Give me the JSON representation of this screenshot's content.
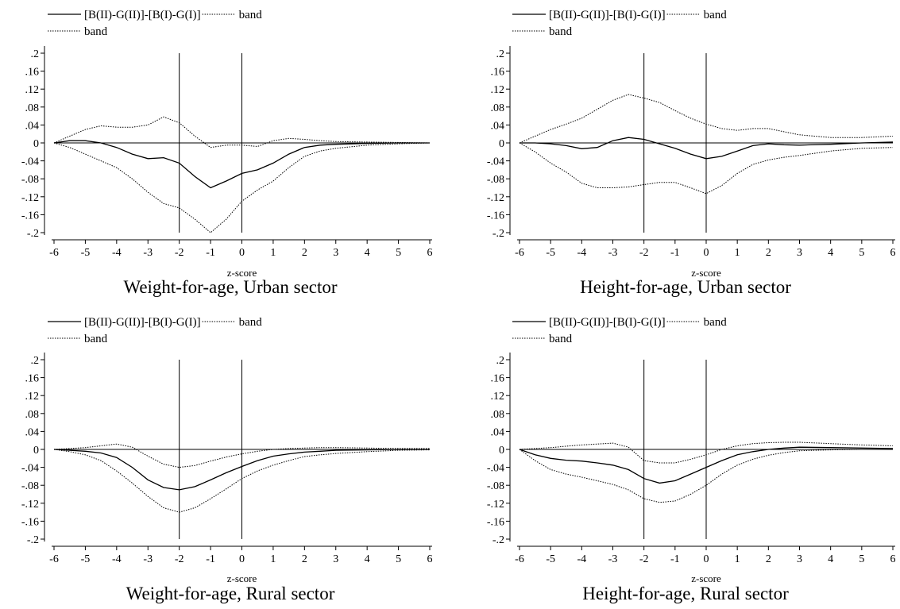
{
  "chart_data": [
    {
      "type": "line",
      "title": "Weight-for-age, Urban sector",
      "xlabel": "z-score",
      "ylabel": "",
      "xlim": [
        -6,
        6
      ],
      "ylim": [
        -0.2,
        0.2
      ],
      "x_ticks": [
        -6,
        -5,
        -4,
        -3,
        -2,
        -1,
        0,
        1,
        2,
        3,
        4,
        5,
        6
      ],
      "y_ticks": [
        0.2,
        0.16,
        0.12,
        0.08,
        0.04,
        0,
        -0.04,
        -0.08,
        -0.12,
        -0.16,
        -0.2
      ],
      "x_tick_labels": [
        "-6",
        "-5",
        "-4",
        "-3",
        "-2",
        "-1",
        "0",
        "1",
        "2",
        "3",
        "4",
        "5",
        "6"
      ],
      "y_tick_labels": [
        ".2",
        ".16",
        ".12",
        ".08",
        ".04",
        "0",
        "-.04",
        "-.08",
        "-.12",
        "-.16",
        "-.2"
      ],
      "vlines": [
        -2,
        0
      ],
      "hline": 0,
      "legend": {
        "placement": "top",
        "entries": [
          "[B(II)-G(II)]-[B(I)-G(I)]",
          "band",
          "band"
        ]
      },
      "series": [
        {
          "name": "[B(II)-G(II)]-[B(I)-G(I)]",
          "style": "solid",
          "x": [
            -6,
            -5.5,
            -5,
            -4.5,
            -4,
            -3.5,
            -3,
            -2.5,
            -2,
            -1.5,
            -1,
            -0.5,
            0,
            0.5,
            1,
            1.5,
            2,
            2.5,
            3,
            4,
            5,
            6
          ],
          "y": [
            0,
            0.005,
            0.005,
            0,
            -0.01,
            -0.025,
            -0.035,
            -0.033,
            -0.045,
            -0.075,
            -0.1,
            -0.085,
            -0.068,
            -0.06,
            -0.045,
            -0.025,
            -0.01,
            -0.005,
            -0.003,
            -0.001,
            0,
            0
          ]
        },
        {
          "name": "band",
          "style": "dotted",
          "x": [
            -6,
            -5.5,
            -5,
            -4.5,
            -4,
            -3.5,
            -3,
            -2.5,
            -2,
            -1.5,
            -1,
            -0.5,
            0,
            0.5,
            1,
            1.5,
            2,
            2.5,
            3,
            4,
            5,
            6
          ],
          "y": [
            0,
            0.015,
            0.03,
            0.038,
            0.035,
            0.035,
            0.04,
            0.058,
            0.045,
            0.015,
            -0.01,
            -0.005,
            -0.005,
            -0.008,
            0.005,
            0.01,
            0.008,
            0.005,
            0.003,
            0.002,
            0.001,
            0
          ]
        },
        {
          "name": "band",
          "style": "dotted",
          "x": [
            -6,
            -5.5,
            -5,
            -4.5,
            -4,
            -3.5,
            -3,
            -2.5,
            -2,
            -1.5,
            -1,
            -0.5,
            0,
            0.5,
            1,
            1.5,
            2,
            2.5,
            3,
            4,
            5,
            6
          ],
          "y": [
            0,
            -0.01,
            -0.025,
            -0.04,
            -0.055,
            -0.08,
            -0.11,
            -0.135,
            -0.145,
            -0.17,
            -0.2,
            -0.17,
            -0.13,
            -0.105,
            -0.085,
            -0.055,
            -0.03,
            -0.018,
            -0.012,
            -0.005,
            -0.002,
            0
          ]
        }
      ]
    },
    {
      "type": "line",
      "title": "Height-for-age, Urban sector",
      "xlabel": "z-score",
      "ylabel": "",
      "xlim": [
        -6,
        6
      ],
      "ylim": [
        -0.2,
        0.2
      ],
      "x_ticks": [
        -6,
        -5,
        -4,
        -3,
        -2,
        -1,
        0,
        1,
        2,
        3,
        4,
        5,
        6
      ],
      "y_ticks": [
        0.2,
        0.16,
        0.12,
        0.08,
        0.04,
        0,
        -0.04,
        -0.08,
        -0.12,
        -0.16,
        -0.2
      ],
      "x_tick_labels": [
        "-6",
        "-5",
        "-4",
        "-3",
        "-2",
        "-1",
        "0",
        "1",
        "2",
        "3",
        "4",
        "5",
        "6"
      ],
      "y_tick_labels": [
        ".2",
        ".16",
        ".12",
        ".08",
        ".04",
        "0",
        "-.04",
        "-.08",
        "-.12",
        "-.16",
        "-.2"
      ],
      "vlines": [
        -2,
        0
      ],
      "hline": 0,
      "legend": {
        "placement": "top",
        "entries": [
          "[B(II)-G(II)]-[B(I)-G(I)]",
          "band",
          "band"
        ]
      },
      "series": [
        {
          "name": "[B(II)-G(II)]-[B(I)-G(I)]",
          "style": "solid",
          "x": [
            -6,
            -5.5,
            -5,
            -4.5,
            -4,
            -3.5,
            -3,
            -2.5,
            -2,
            -1.5,
            -1,
            -0.5,
            0,
            0.5,
            1,
            1.5,
            2,
            2.5,
            3,
            4,
            5,
            6
          ],
          "y": [
            0,
            0,
            -0.002,
            -0.006,
            -0.013,
            -0.01,
            0.005,
            0.012,
            0.008,
            -0.002,
            -0.012,
            -0.025,
            -0.035,
            -0.03,
            -0.018,
            -0.006,
            -0.002,
            -0.004,
            -0.005,
            -0.003,
            0,
            0.002
          ]
        },
        {
          "name": "band",
          "style": "dotted",
          "x": [
            -6,
            -5.5,
            -5,
            -4.5,
            -4,
            -3.5,
            -3,
            -2.5,
            -2,
            -1.5,
            -1,
            -0.5,
            0,
            0.5,
            1,
            1.5,
            2,
            2.5,
            3,
            4,
            5,
            6
          ],
          "y": [
            0,
            0.015,
            0.03,
            0.042,
            0.055,
            0.075,
            0.095,
            0.108,
            0.1,
            0.09,
            0.072,
            0.055,
            0.042,
            0.032,
            0.028,
            0.032,
            0.032,
            0.025,
            0.018,
            0.012,
            0.012,
            0.015
          ]
        },
        {
          "name": "band",
          "style": "dotted",
          "x": [
            -6,
            -5.5,
            -5,
            -4.5,
            -4,
            -3.5,
            -3,
            -2.5,
            -2,
            -1.5,
            -1,
            -0.5,
            0,
            0.5,
            1,
            1.5,
            2,
            2.5,
            3,
            4,
            5,
            6
          ],
          "y": [
            0,
            -0.02,
            -0.045,
            -0.065,
            -0.09,
            -0.1,
            -0.1,
            -0.098,
            -0.093,
            -0.088,
            -0.088,
            -0.1,
            -0.113,
            -0.095,
            -0.068,
            -0.048,
            -0.038,
            -0.032,
            -0.028,
            -0.018,
            -0.012,
            -0.01
          ]
        }
      ]
    },
    {
      "type": "line",
      "title": "Weight-for-age, Rural sector",
      "xlabel": "z-score",
      "ylabel": "",
      "xlim": [
        -6,
        6
      ],
      "ylim": [
        -0.2,
        0.2
      ],
      "x_ticks": [
        -6,
        -5,
        -4,
        -3,
        -2,
        -1,
        0,
        1,
        2,
        3,
        4,
        5,
        6
      ],
      "y_ticks": [
        0.2,
        0.16,
        0.12,
        0.08,
        0.04,
        0,
        -0.04,
        -0.08,
        -0.12,
        -0.16,
        -0.2
      ],
      "x_tick_labels": [
        "-6",
        "-5",
        "-4",
        "-3",
        "-2",
        "-1",
        "0",
        "1",
        "2",
        "3",
        "4",
        "5",
        "6"
      ],
      "y_tick_labels": [
        ".2",
        ".16",
        ".12",
        ".08",
        ".04",
        "0",
        "-.04",
        "-.08",
        "-.12",
        "-.16",
        "-.2"
      ],
      "vlines": [
        -2,
        0
      ],
      "hline": 0,
      "legend": {
        "placement": "top",
        "entries": [
          "[B(II)-G(II)]-[B(I)-G(I)]",
          "band",
          "band"
        ]
      },
      "series": [
        {
          "name": "[B(II)-G(II)]-[B(I)-G(I)]",
          "style": "solid",
          "x": [
            -6,
            -5.5,
            -5,
            -4.5,
            -4,
            -3.5,
            -3,
            -2.5,
            -2,
            -1.5,
            -1,
            -0.5,
            0,
            0.5,
            1,
            1.5,
            2,
            2.5,
            3,
            4,
            5,
            6
          ],
          "y": [
            0,
            -0.002,
            -0.004,
            -0.008,
            -0.018,
            -0.04,
            -0.068,
            -0.085,
            -0.09,
            -0.083,
            -0.068,
            -0.052,
            -0.038,
            -0.025,
            -0.015,
            -0.01,
            -0.006,
            -0.004,
            -0.002,
            -0.001,
            0,
            0
          ]
        },
        {
          "name": "band",
          "style": "dotted",
          "x": [
            -6,
            -5.5,
            -5,
            -4.5,
            -4,
            -3.5,
            -3,
            -2.5,
            -2,
            -1.5,
            -1,
            -0.5,
            0,
            0.5,
            1,
            1.5,
            2,
            2.5,
            3,
            4,
            5,
            6
          ],
          "y": [
            0,
            0.002,
            0.004,
            0.008,
            0.012,
            0.005,
            -0.015,
            -0.033,
            -0.04,
            -0.036,
            -0.026,
            -0.017,
            -0.01,
            -0.004,
            0,
            0.002,
            0.003,
            0.004,
            0.004,
            0.003,
            0.002,
            0.002
          ]
        },
        {
          "name": "band",
          "style": "dotted",
          "x": [
            -6,
            -5.5,
            -5,
            -4.5,
            -4,
            -3.5,
            -3,
            -2.5,
            -2,
            -1.5,
            -1,
            -0.5,
            0,
            0.5,
            1,
            1.5,
            2,
            2.5,
            3,
            4,
            5,
            6
          ],
          "y": [
            0,
            -0.005,
            -0.012,
            -0.025,
            -0.048,
            -0.075,
            -0.105,
            -0.13,
            -0.14,
            -0.13,
            -0.11,
            -0.088,
            -0.065,
            -0.048,
            -0.035,
            -0.025,
            -0.016,
            -0.012,
            -0.009,
            -0.005,
            -0.002,
            -0.001
          ]
        }
      ]
    },
    {
      "type": "line",
      "title": "Height-for-age, Rural sector",
      "xlabel": "z-score",
      "ylabel": "",
      "xlim": [
        -6,
        6
      ],
      "ylim": [
        -0.2,
        0.2
      ],
      "x_ticks": [
        -6,
        -5,
        -4,
        -3,
        -2,
        -1,
        0,
        1,
        2,
        3,
        4,
        5,
        6
      ],
      "y_ticks": [
        0.2,
        0.16,
        0.12,
        0.08,
        0.04,
        0,
        -0.04,
        -0.08,
        -0.12,
        -0.16,
        -0.2
      ],
      "x_tick_labels": [
        "-6",
        "-5",
        "-4",
        "-3",
        "-2",
        "-1",
        "0",
        "1",
        "2",
        "3",
        "4",
        "5",
        "6"
      ],
      "y_tick_labels": [
        ".2",
        ".16",
        ".12",
        ".08",
        ".04",
        "0",
        "-.04",
        "-.08",
        "-.12",
        "-.16",
        "-.2"
      ],
      "vlines": [
        -2,
        0
      ],
      "hline": 0,
      "legend": {
        "placement": "top",
        "entries": [
          "[B(II)-G(II)]-[B(I)-G(I)]",
          "band",
          "band"
        ]
      },
      "series": [
        {
          "name": "[B(II)-G(II)]-[B(I)-G(I)]",
          "style": "solid",
          "x": [
            -6,
            -5.5,
            -5,
            -4.5,
            -4,
            -3.5,
            -3,
            -2.5,
            -2,
            -1.5,
            -1,
            -0.5,
            0,
            0.5,
            1,
            1.5,
            2,
            2.5,
            3,
            4,
            5,
            6
          ],
          "y": [
            0,
            -0.012,
            -0.02,
            -0.024,
            -0.026,
            -0.03,
            -0.035,
            -0.045,
            -0.065,
            -0.075,
            -0.07,
            -0.055,
            -0.04,
            -0.025,
            -0.012,
            -0.005,
            0,
            0.003,
            0.005,
            0.004,
            0.003,
            0.002
          ]
        },
        {
          "name": "band",
          "style": "dotted",
          "x": [
            -6,
            -5.5,
            -5,
            -4.5,
            -4,
            -3.5,
            -3,
            -2.5,
            -2,
            -1.5,
            -1,
            -0.5,
            0,
            0.5,
            1,
            1.5,
            2,
            2.5,
            3,
            4,
            5,
            6
          ],
          "y": [
            0,
            0.002,
            0.004,
            0.007,
            0.01,
            0.012,
            0.014,
            0.005,
            -0.025,
            -0.03,
            -0.03,
            -0.022,
            -0.012,
            0,
            0.008,
            0.013,
            0.015,
            0.016,
            0.016,
            0.013,
            0.01,
            0.008
          ]
        },
        {
          "name": "band",
          "style": "dotted",
          "x": [
            -6,
            -5.5,
            -5,
            -4.5,
            -4,
            -3.5,
            -3,
            -2.5,
            -2,
            -1.5,
            -1,
            -0.5,
            0,
            0.5,
            1,
            1.5,
            2,
            2.5,
            3,
            4,
            5,
            6
          ],
          "y": [
            0,
            -0.025,
            -0.045,
            -0.055,
            -0.062,
            -0.07,
            -0.078,
            -0.09,
            -0.11,
            -0.118,
            -0.115,
            -0.1,
            -0.08,
            -0.055,
            -0.035,
            -0.022,
            -0.013,
            -0.007,
            -0.003,
            -0.001,
            0,
            0
          ]
        }
      ]
    }
  ]
}
